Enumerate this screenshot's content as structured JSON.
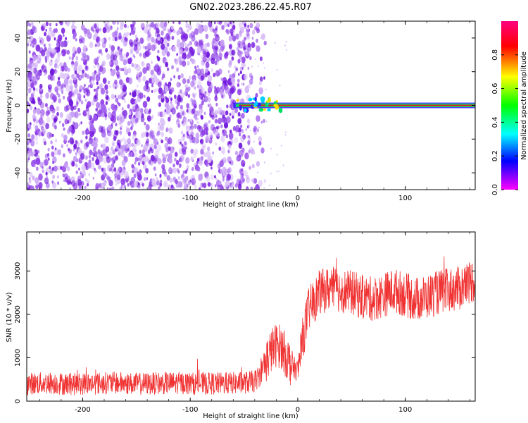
{
  "page_title": "GN02.2023.286.22.45.R07",
  "colors": {
    "snr_line": "#f03232",
    "spectrum_speckle": "#7a1fe0",
    "spectrum_line": "#e02020",
    "grid_axis": "#000000"
  },
  "chart_data": [
    {
      "type": "heatmap",
      "name": "spectrogram",
      "xlabel": "Height of straight line (km)",
      "ylabel": "Frequency (Hz)",
      "xlim": [
        -252,
        165
      ],
      "ylim": [
        -50,
        50
      ],
      "xticks": [
        -200,
        -100,
        0,
        100
      ],
      "yticks": [
        -40,
        -20,
        0,
        20,
        40
      ],
      "colorbar": {
        "label": "Normalized spectral amplitude",
        "range": [
          0,
          1
        ],
        "ticks": [
          0.0,
          0.2,
          0.4,
          0.6,
          0.8
        ],
        "colormap": [
          "#ff00ff",
          "#0000ff",
          "#00ffff",
          "#00ff00",
          "#ffff00",
          "#ff0000",
          "#ff0080"
        ]
      },
      "features": {
        "noise_region_x": [
          -252,
          -45
        ],
        "signal_line_x": [
          -60,
          165
        ],
        "signal_freq_hz": 0
      }
    },
    {
      "type": "line",
      "name": "snr",
      "xlabel": "Height of straight line (km)",
      "ylabel": "SNR (10 * v/v)",
      "xlim": [
        -252,
        165
      ],
      "ylim": [
        0,
        3900
      ],
      "xticks": [
        -200,
        -100,
        0,
        100
      ],
      "yticks": [
        0,
        1000,
        2000,
        3000
      ],
      "series": [
        {
          "x": [
            -252,
            -230,
            -210,
            -190,
            -170,
            -150,
            -130,
            -110,
            -90,
            -70,
            -50,
            -40,
            -35,
            -30,
            -25,
            -20,
            -15,
            -10,
            -5,
            0,
            5,
            10,
            15,
            20,
            30,
            40,
            50,
            60,
            70,
            80,
            90,
            100,
            110,
            120,
            130,
            140,
            150,
            160,
            165
          ],
          "values": [
            400,
            420,
            390,
            410,
            420,
            400,
            410,
            420,
            400,
            410,
            420,
            460,
            600,
            900,
            1150,
            1300,
            1250,
            1000,
            800,
            700,
            1500,
            2100,
            2300,
            2500,
            2600,
            2550,
            2500,
            2400,
            2350,
            2450,
            2550,
            2450,
            2350,
            2400,
            2500,
            2550,
            2600,
            2750,
            2800
          ]
        }
      ]
    }
  ]
}
